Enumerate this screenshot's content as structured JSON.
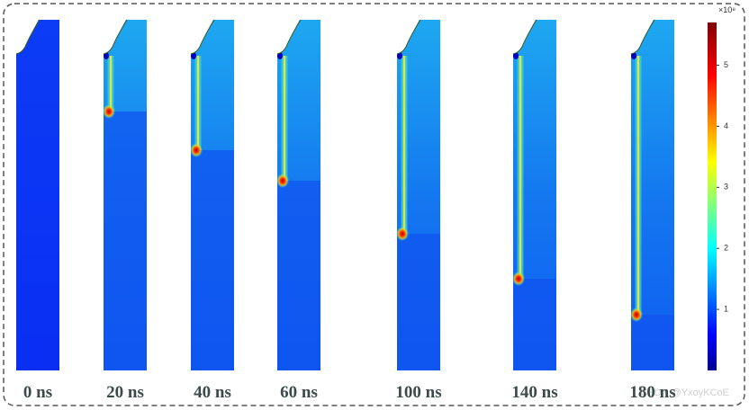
{
  "panels": [
    {
      "label": "0 ns"
    },
    {
      "label": "20 ns"
    },
    {
      "label": "40 ns"
    },
    {
      "label": "60 ns"
    },
    {
      "label": "100 ns"
    },
    {
      "label": "140 ns"
    },
    {
      "label": "180 ns"
    }
  ],
  "colorbar": {
    "exponent_label": "×10⁸",
    "lim": [
      0,
      5.7
    ],
    "ticks": [
      1,
      2,
      3,
      4,
      5
    ]
  },
  "watermark": "CSDN @YxoyKCoE"
}
